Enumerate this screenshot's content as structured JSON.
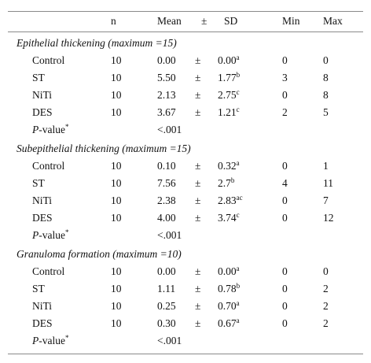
{
  "table": {
    "header": [
      "n",
      "Mean",
      "±",
      "SD",
      "Min",
      "Max"
    ],
    "sections": [
      {
        "title": "Epithelial thickening (maximum =15)",
        "rows": [
          [
            "Control",
            "10",
            "0.00",
            "±",
            "0.00",
            "a",
            "0",
            "0"
          ],
          [
            "ST",
            "10",
            "5.50",
            "±",
            "1.77",
            "b",
            "3",
            "8"
          ],
          [
            "NiTi",
            "10",
            "2.13",
            "±",
            "2.75",
            "c",
            "0",
            "8"
          ],
          [
            "DES",
            "10",
            "3.67",
            "±",
            "1.21",
            "c",
            "2",
            "5"
          ]
        ],
        "p_value": {
          "label_italic": "P",
          "label_rest": "-value",
          "note": "*",
          "value": "<.001"
        }
      },
      {
        "title": "Subepithelial thickening (maximum =15)",
        "rows": [
          [
            "Control",
            "10",
            "0.10",
            "±",
            "0.32",
            "a",
            "0",
            "1"
          ],
          [
            "ST",
            "10",
            "7.56",
            "±",
            "2.7",
            "b",
            "4",
            "11"
          ],
          [
            "NiTi",
            "10",
            "2.38",
            "±",
            "2.83",
            "ac",
            "0",
            "7"
          ],
          [
            "DES",
            "10",
            "4.00",
            "±",
            "3.74",
            "c",
            "0",
            "12"
          ]
        ],
        "p_value": {
          "label_italic": "P",
          "label_rest": "-value",
          "note": "*",
          "value": "<.001"
        }
      },
      {
        "title": "Granuloma formation (maximum =10)",
        "rows": [
          [
            "Control",
            "10",
            "0.00",
            "±",
            "0.00",
            "a",
            "0",
            "0"
          ],
          [
            "ST",
            "10",
            "1.11",
            "±",
            "0.78",
            "b",
            "0",
            "2"
          ],
          [
            "NiTi",
            "10",
            "0.25",
            "±",
            "0.70",
            "a",
            "0",
            "2"
          ],
          [
            "DES",
            "10",
            "0.30",
            "±",
            "0.67",
            "a",
            "0",
            "2"
          ]
        ],
        "p_value": {
          "label_italic": "P",
          "label_rest": "-value",
          "note": "*",
          "value": "<.001"
        }
      }
    ]
  }
}
